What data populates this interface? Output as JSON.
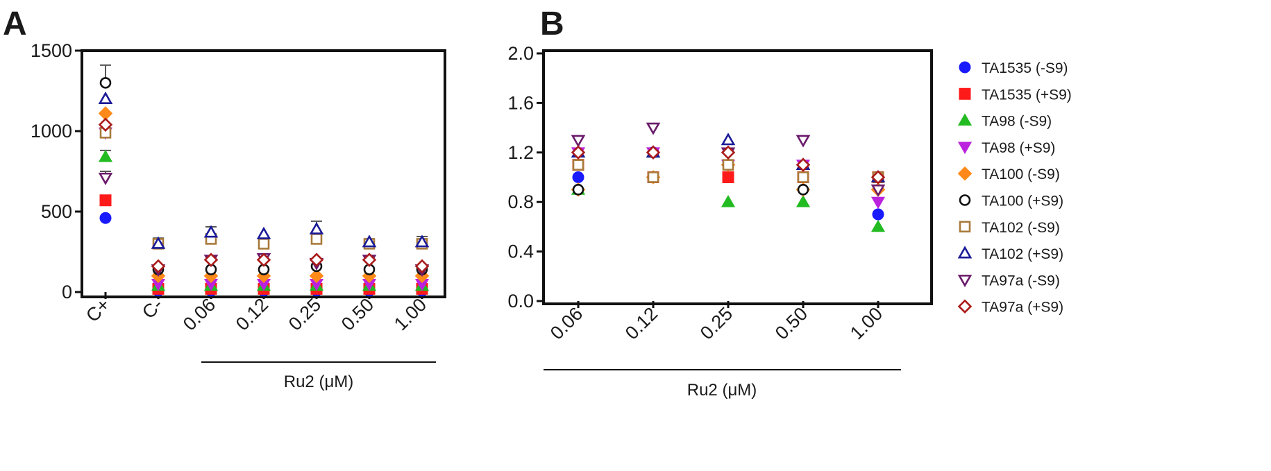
{
  "panels": [
    {
      "letter": "A"
    },
    {
      "letter": "B"
    }
  ],
  "chart_data": [
    {
      "type": "scatter",
      "panel": "A",
      "categories": [
        "C+",
        "C-",
        "0.06",
        "0.12",
        "0.25",
        "0.50",
        "1.00"
      ],
      "xlabel": "Ru2 (μM)",
      "xlabel_spans_categories": [
        "0.06",
        "1.00"
      ],
      "ylabel": "",
      "ylim": [
        0,
        1500
      ],
      "yticks": [
        0,
        500,
        1000,
        1500
      ],
      "ytick_labels": [
        "0",
        "500",
        "1000",
        "1500"
      ],
      "grid": false,
      "legend": "none",
      "series": [
        {
          "name": "TA1535 (-S9)",
          "values": [
            460,
            10,
            10,
            10,
            10,
            10,
            10
          ]
        },
        {
          "name": "TA1535 (+S9)",
          "values": [
            570,
            20,
            20,
            20,
            20,
            20,
            20
          ]
        },
        {
          "name": "TA98 (-S9)",
          "values": [
            840,
            40,
            40,
            40,
            40,
            40,
            40
          ]
        },
        {
          "name": "TA98 (+S9)",
          "values": [
            990,
            50,
            50,
            50,
            50,
            50,
            50
          ]
        },
        {
          "name": "TA100 (-S9)",
          "values": [
            1110,
            100,
            100,
            100,
            100,
            100,
            100
          ]
        },
        {
          "name": "TA100 (+S9)",
          "values": [
            1300,
            140,
            140,
            140,
            160,
            140,
            140
          ]
        },
        {
          "name": "TA102 (-S9)",
          "values": [
            990,
            300,
            330,
            300,
            330,
            300,
            300
          ]
        },
        {
          "name": "TA102 (+S9)",
          "values": [
            1200,
            300,
            370,
            360,
            390,
            310,
            310
          ]
        },
        {
          "name": "TA97a (-S9)",
          "values": [
            710,
            140,
            200,
            210,
            180,
            200,
            140
          ]
        },
        {
          "name": "TA97a (+S9)",
          "values": [
            1040,
            160,
            200,
            200,
            200,
            200,
            160
          ]
        }
      ],
      "error_bars": [
        {
          "series": "TA100 (+S9)",
          "category": "C+",
          "upper": 1410
        },
        {
          "series": "TA98 (-S9)",
          "category": "C+",
          "upper": 880
        },
        {
          "series": "TA97a (-S9)",
          "category": "C+",
          "upper": 750
        },
        {
          "series": "TA102 (-S9)",
          "category": "C-",
          "upper": 335
        },
        {
          "series": "TA102 (+S9)",
          "category": "0.06",
          "upper": 405
        },
        {
          "series": "TA102 (+S9)",
          "category": "0.25",
          "upper": 440
        },
        {
          "series": "TA102 (+S9)",
          "category": "1.00",
          "upper": 345
        }
      ]
    },
    {
      "type": "scatter",
      "panel": "B",
      "categories": [
        "0.06",
        "0.12",
        "0.25",
        "0.50",
        "1.00"
      ],
      "xlabel": "Ru2 (μM)",
      "ylabel": "",
      "ylim": [
        0,
        2.0
      ],
      "yticks": [
        0,
        0.4,
        0.8,
        1.2,
        1.6,
        2.0
      ],
      "ytick_labels": [
        "0.0",
        "0.4",
        "0.8",
        "1.2",
        "1.6",
        "2.0"
      ],
      "grid": false,
      "legend": "right",
      "series": [
        {
          "name": "TA1535 (-S9)",
          "values": [
            1.0,
            1.2,
            1.1,
            1.0,
            0.7
          ]
        },
        {
          "name": "TA1535 (+S9)",
          "values": [
            1.1,
            1.0,
            1.0,
            1.0,
            1.0
          ]
        },
        {
          "name": "TA98 (-S9)",
          "values": [
            0.9,
            1.2,
            0.8,
            0.8,
            0.6
          ]
        },
        {
          "name": "TA98 (+S9)",
          "values": [
            1.2,
            1.2,
            1.1,
            1.1,
            0.8
          ]
        },
        {
          "name": "TA100 (-S9)",
          "values": [
            0.9,
            1.0,
            1.1,
            0.9,
            0.9
          ]
        },
        {
          "name": "TA100 (+S9)",
          "values": [
            0.9,
            1.0,
            1.1,
            0.9,
            1.0
          ]
        },
        {
          "name": "TA102 (-S9)",
          "values": [
            1.1,
            1.0,
            1.1,
            1.0,
            1.0
          ]
        },
        {
          "name": "TA102 (+S9)",
          "values": [
            1.2,
            1.2,
            1.3,
            1.1,
            1.0
          ]
        },
        {
          "name": "TA97a (-S9)",
          "values": [
            1.3,
            1.4,
            1.2,
            1.3,
            0.9
          ]
        },
        {
          "name": "TA97a (+S9)",
          "values": [
            1.2,
            1.2,
            1.2,
            1.1,
            1.0
          ]
        }
      ]
    }
  ],
  "legend_entries": [
    {
      "name": "TA1535 (-S9)",
      "marker": "circle",
      "filled": true,
      "color": "#1a1aff"
    },
    {
      "name": "TA1535 (+S9)",
      "marker": "square",
      "filled": true,
      "color": "#ff1a1a"
    },
    {
      "name": "TA98 (-S9)",
      "marker": "triangle-up",
      "filled": true,
      "color": "#22bb22"
    },
    {
      "name": "TA98 (+S9)",
      "marker": "triangle-down",
      "filled": true,
      "color": "#bb22dd"
    },
    {
      "name": "TA100 (-S9)",
      "marker": "diamond",
      "filled": true,
      "color": "#ff8a1a"
    },
    {
      "name": "TA100 (+S9)",
      "marker": "circle",
      "filled": false,
      "color": "#111111"
    },
    {
      "name": "TA102 (-S9)",
      "marker": "square",
      "filled": false,
      "color": "#a87a3a"
    },
    {
      "name": "TA102 (+S9)",
      "marker": "triangle-up",
      "filled": false,
      "color": "#1a1a99"
    },
    {
      "name": "TA97a (-S9)",
      "marker": "triangle-down",
      "filled": false,
      "color": "#6a1a6a"
    },
    {
      "name": "TA97a (+S9)",
      "marker": "diamond",
      "filled": false,
      "color": "#aa1a1a"
    }
  ]
}
